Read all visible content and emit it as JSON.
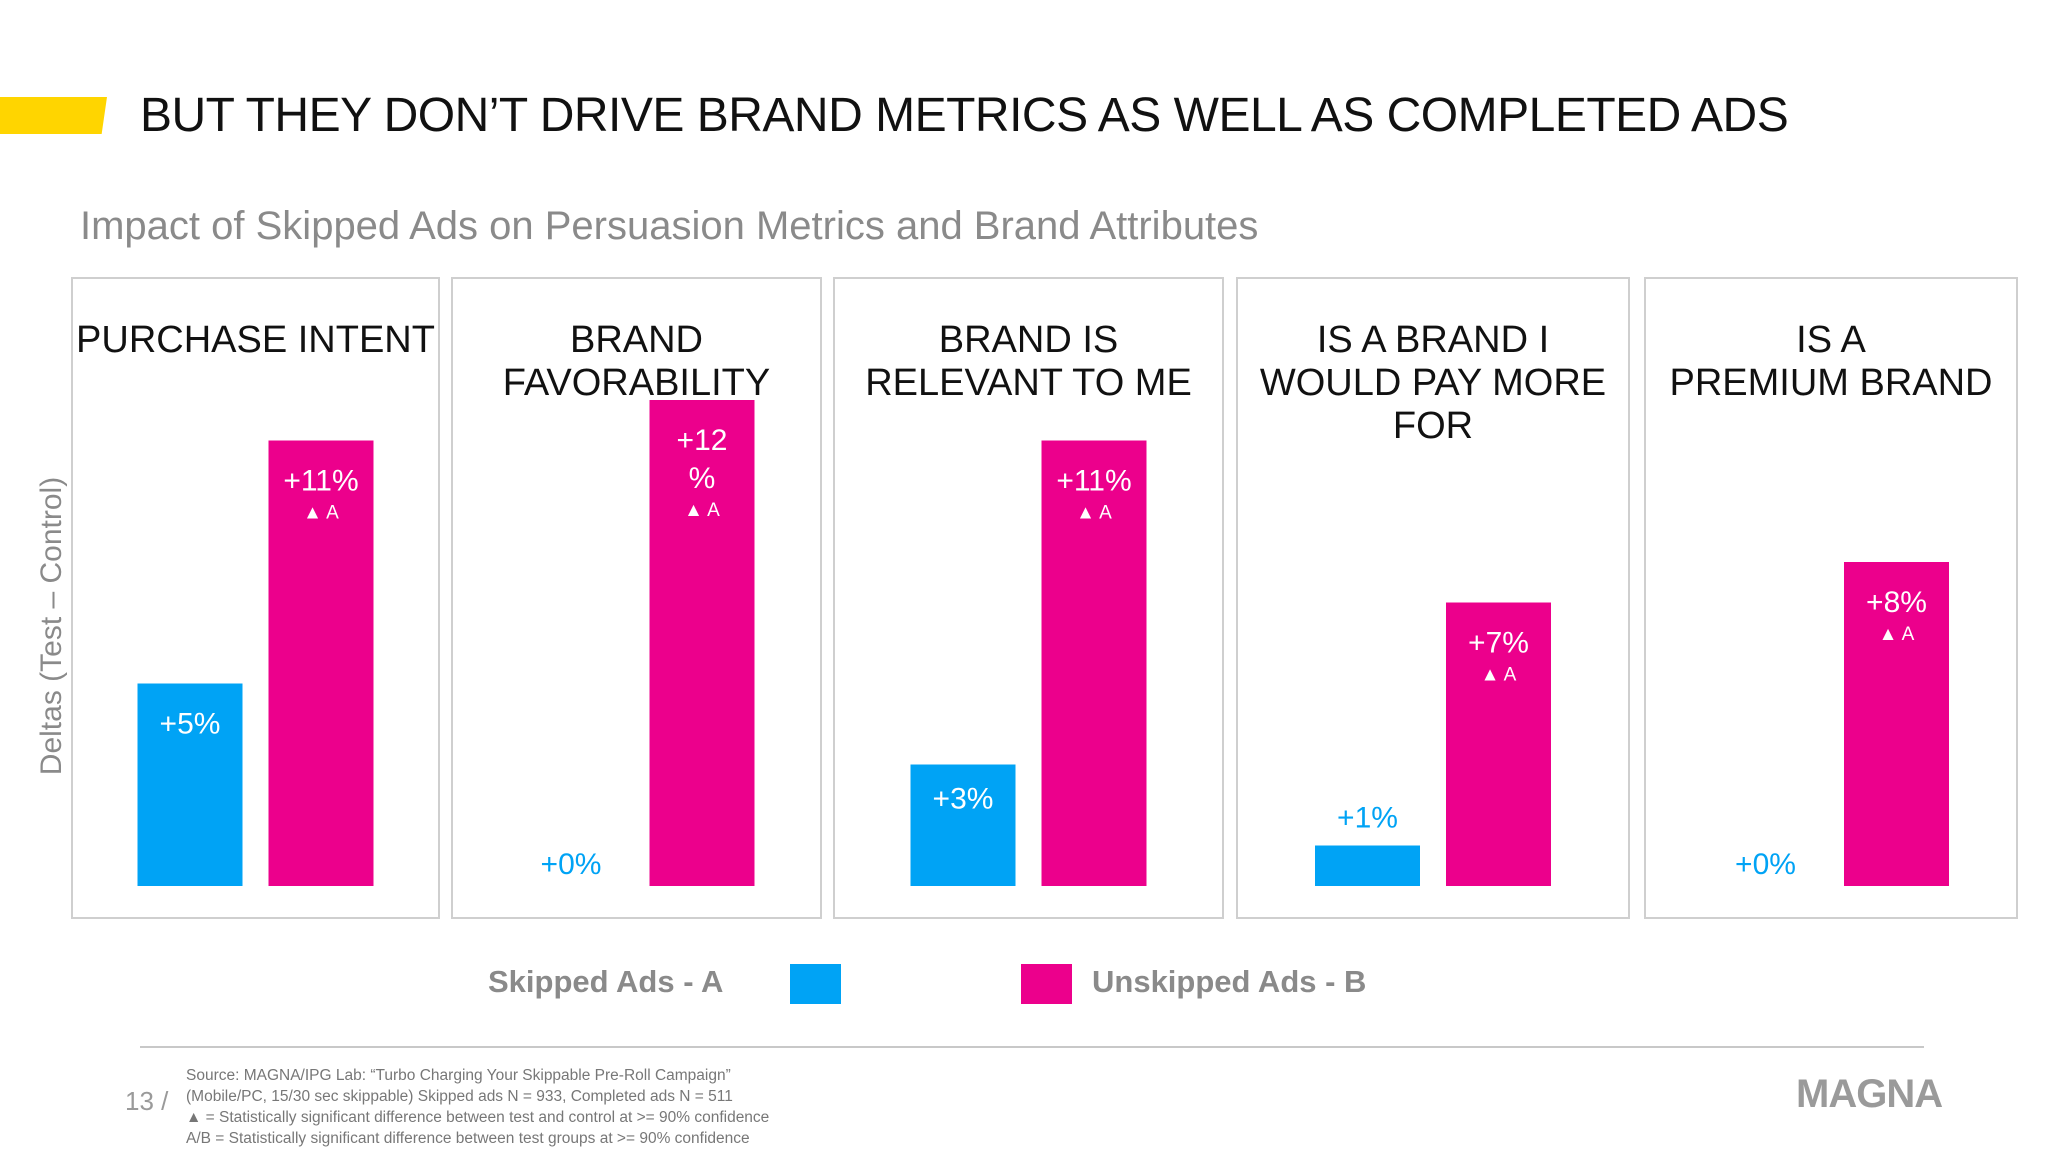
{
  "slide": {
    "title": "BUT THEY DON’T DRIVE BRAND METRICS AS WELL AS COMPLETED ADS",
    "page_number": "13 /",
    "accent_color": "#ffd500",
    "brand_logo": "MAGNA"
  },
  "footer": {
    "lines": [
      "Source: MAGNA/IPG Lab: “Turbo Charging Your Skippable Pre-Roll Campaign”",
      "(Mobile/PC, 15/30 sec skippable) Skipped ads N = 933, Completed ads N = 511",
      "▲ = Statistically significant difference between test and control at >= 90% confidence",
      "A/B = Statistically significant difference between test groups at >= 90% confidence"
    ]
  },
  "chart_data": {
    "type": "bar",
    "title": "Impact of Skipped Ads on Persuasion Metrics and Brand Attributes",
    "ylabel": "Deltas (Test – Control)",
    "ylim": [
      0,
      13
    ],
    "unit": "%",
    "grid": false,
    "legend_position": "bottom",
    "categories": [
      [
        "PURCHASE INTENT"
      ],
      [
        "BRAND",
        "FAVORABILITY"
      ],
      [
        "BRAND IS",
        "RELEVANT TO ME"
      ],
      [
        "IS A BRAND I",
        "WOULD PAY MORE",
        "FOR"
      ],
      [
        "IS A",
        "PREMIUM BRAND"
      ]
    ],
    "series": [
      {
        "name": "Skipped Ads - A",
        "color": "#00a3f5",
        "values": [
          5,
          0,
          3,
          1,
          0
        ],
        "labels": [
          "+5%",
          "+0%",
          "+3%",
          "+1%",
          "+0%"
        ],
        "markers": [
          "",
          "",
          "",
          "",
          ""
        ]
      },
      {
        "name": "Unskipped Ads - B",
        "color": "#ec008c",
        "values": [
          11,
          12,
          11,
          7,
          8
        ],
        "labels": [
          "+11%",
          "+12 %",
          "+11%",
          "+7%",
          "+8%"
        ],
        "markers": [
          "▲ A",
          "▲ A",
          "▲ A",
          "▲ A",
          "▲ A"
        ]
      }
    ]
  }
}
